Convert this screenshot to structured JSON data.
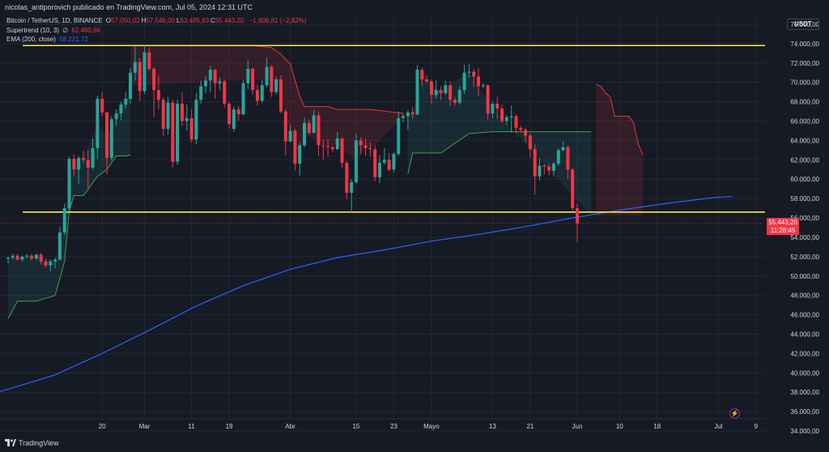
{
  "header": {
    "attribution": "nicolas_antiporovich publicado en TradingView.com, Jul 05, 2024 12:31 UTC"
  },
  "legend": {
    "symbol": "Bitcoin / TetherUS, 1D, BINANCE",
    "ohlc": [
      {
        "label": "O",
        "value": "57.050,02"
      },
      {
        "label": "H",
        "value": "57.546,00"
      },
      {
        "label": "L",
        "value": "53.485,93"
      },
      {
        "label": "C",
        "value": "55.443,20"
      }
    ],
    "change": "−1.606,81 (−2,82%)",
    "supertrend_label": "Supertrend (10, 3)",
    "supertrend_symbol": "∅",
    "supertrend_value": "62.460,66",
    "ema_label": "EMA (200, close)",
    "ema_value": "58.221,72"
  },
  "axis": {
    "unit": "USDT",
    "last_price": "55.443,20",
    "countdown": "11:28:45"
  },
  "footer": {
    "logo_text": "TradingView"
  },
  "colors": {
    "background": "#161a25",
    "bull": "#26a69a",
    "bear": "#f23645",
    "ema": "#2962ff",
    "levels": "#ffeb3b",
    "grid": "#232733",
    "text": "#d1d4dc"
  },
  "chart_data": {
    "type": "candlestick",
    "ylim": [
      33500,
      77000
    ],
    "y_ticks": [
      34000,
      36000,
      38000,
      40000,
      42000,
      44000,
      46000,
      48000,
      50000,
      52000,
      54000,
      56000,
      58000,
      60000,
      62000,
      64000,
      66000,
      68000,
      70000,
      72000,
      74000,
      76000
    ],
    "y_tick_labels": [
      "34.000,00",
      "36.000,00",
      "38.000,00",
      "40.000,00",
      "42.000,00",
      "44.000,00",
      "46.000,00",
      "48.000,00",
      "50.000,00",
      "52.000,00",
      "54.000,00",
      "56.000,00",
      "58.000,00",
      "60.000,00",
      "62.000,00",
      "64.000,00",
      "66.000,00",
      "68.000,00",
      "70.000,00",
      "72.000,00",
      "74.000,00",
      "76.000,00"
    ],
    "x_ticks": [
      {
        "label": "20",
        "day": 20
      },
      {
        "label": "Mar",
        "day": 29
      },
      {
        "label": "11",
        "day": 39
      },
      {
        "label": "19",
        "day": 47
      },
      {
        "label": "Abr",
        "day": 60
      },
      {
        "label": "15",
        "day": 74
      },
      {
        "label": "23",
        "day": 82
      },
      {
        "label": "Mayo",
        "day": 90
      },
      {
        "label": "13",
        "day": 103
      },
      {
        "label": "21",
        "day": 111
      },
      {
        "label": "Jun",
        "day": 121
      },
      {
        "label": "10",
        "day": 130
      },
      {
        "label": "18",
        "day": 138
      },
      {
        "label": "Jul",
        "day": 151
      },
      {
        "label": "9",
        "day": 159
      }
    ],
    "horizontal_levels": [
      73800,
      56600
    ],
    "last_close": 55443.2,
    "candles": [
      [
        51800,
        52000,
        51300,
        51900
      ],
      [
        51900,
        52300,
        51700,
        52100
      ],
      [
        52100,
        52300,
        51600,
        51700
      ],
      [
        51700,
        52100,
        51500,
        52000
      ],
      [
        52000,
        52300,
        51800,
        52100
      ],
      [
        52100,
        52300,
        51600,
        51800
      ],
      [
        51800,
        52300,
        51700,
        52200
      ],
      [
        52200,
        52400,
        51200,
        51500
      ],
      [
        51500,
        51800,
        50900,
        51100
      ],
      [
        51100,
        51700,
        50500,
        51500
      ],
      [
        51500,
        51900,
        50800,
        51700
      ],
      [
        51700,
        55100,
        51600,
        54500
      ],
      [
        54500,
        57500,
        54200,
        57000
      ],
      [
        57000,
        62300,
        56800,
        62100
      ],
      [
        62100,
        62600,
        60300,
        61000
      ],
      [
        61000,
        62400,
        59500,
        62200
      ],
      [
        62200,
        63000,
        61600,
        62000
      ],
      [
        62000,
        63000,
        59000,
        61200
      ],
      [
        61200,
        64200,
        61000,
        63200
      ],
      [
        63200,
        68600,
        62100,
        68300
      ],
      [
        68300,
        69000,
        66500,
        66900
      ],
      [
        66900,
        67000,
        60500,
        62200
      ],
      [
        62200,
        66500,
        61900,
        66200
      ],
      [
        66200,
        67200,
        65500,
        66800
      ],
      [
        66800,
        68000,
        66100,
        67700
      ],
      [
        67700,
        69000,
        67300,
        68300
      ],
      [
        68300,
        71500,
        67800,
        71000
      ],
      [
        71000,
        73700,
        70200,
        72100
      ],
      [
        72100,
        72500,
        68100,
        69100
      ],
      [
        69100,
        73800,
        68800,
        73100
      ],
      [
        73100,
        73600,
        71200,
        71400
      ],
      [
        71400,
        71600,
        66400,
        69200
      ],
      [
        69200,
        70700,
        67200,
        68200
      ],
      [
        68200,
        68400,
        64500,
        65200
      ],
      [
        65200,
        68500,
        64600,
        67900
      ],
      [
        67900,
        68200,
        61200,
        61800
      ],
      [
        61800,
        68200,
        61500,
        67800
      ],
      [
        67800,
        69000,
        65500,
        66000
      ],
      [
        66000,
        67700,
        65000,
        66300
      ],
      [
        66300,
        67200,
        63800,
        64100
      ],
      [
        64100,
        68900,
        63600,
        68200
      ],
      [
        68200,
        70200,
        67800,
        69600
      ],
      [
        69600,
        70700,
        68900,
        70200
      ],
      [
        70200,
        71700,
        69000,
        71300
      ],
      [
        71300,
        71400,
        68300,
        69900
      ],
      [
        69900,
        70500,
        69200,
        70100
      ],
      [
        70100,
        70300,
        67400,
        67800
      ],
      [
        67800,
        68000,
        65200,
        65700
      ],
      [
        65200,
        67500,
        64900,
        67200
      ],
      [
        67200,
        67600,
        66000,
        66700
      ],
      [
        66700,
        70300,
        66600,
        69900
      ],
      [
        69900,
        72300,
        69300,
        71400
      ],
      [
        71400,
        71500,
        68700,
        69200
      ],
      [
        69200,
        69800,
        67600,
        68100
      ],
      [
        68100,
        70300,
        67900,
        69700
      ],
      [
        69700,
        72600,
        69500,
        71600
      ],
      [
        71600,
        71800,
        68500,
        69000
      ],
      [
        69000,
        70600,
        68800,
        70300
      ],
      [
        70300,
        70700,
        66800,
        67000
      ],
      [
        67000,
        67200,
        62500,
        63900
      ],
      [
        63900,
        65600,
        63800,
        65000
      ],
      [
        65000,
        65200,
        60900,
        61600
      ],
      [
        61600,
        63800,
        60400,
        63500
      ],
      [
        63500,
        66400,
        63300,
        65800
      ],
      [
        65800,
        66200,
        64600,
        64800
      ],
      [
        64800,
        67200,
        64700,
        66600
      ],
      [
        66600,
        67000,
        62400,
        63500
      ],
      [
        63500,
        64100,
        62000,
        63400
      ],
      [
        63400,
        64200,
        62300,
        63300
      ],
      [
        63300,
        63500,
        62800,
        63100
      ],
      [
        63100,
        64900,
        63000,
        64200
      ],
      [
        64200,
        64300,
        61100,
        61700
      ],
      [
        61700,
        61900,
        57900,
        58600
      ],
      [
        58600,
        60000,
        56600,
        59700
      ],
      [
        59700,
        64700,
        59500,
        64000
      ],
      [
        64000,
        64300,
        62600,
        63500
      ],
      [
        63500,
        64200,
        62400,
        63200
      ],
      [
        63200,
        63800,
        62300,
        63100
      ],
      [
        63100,
        63500,
        59800,
        60200
      ],
      [
        60200,
        62500,
        59600,
        61700
      ],
      [
        61700,
        63200,
        61500,
        62000
      ],
      [
        62000,
        62700,
        60800,
        61000
      ],
      [
        61000,
        62800,
        60700,
        62600
      ],
      [
        62600,
        67000,
        62400,
        66300
      ],
      [
        66300,
        66800,
        65900,
        66500
      ],
      [
        66500,
        67100,
        65100,
        66900
      ],
      [
        66900,
        67500,
        66200,
        66700
      ],
      [
        66700,
        71800,
        66600,
        71300
      ],
      [
        71300,
        71500,
        69600,
        70300
      ],
      [
        70300,
        70700,
        69900,
        70100
      ],
      [
        70100,
        70300,
        67800,
        68700
      ],
      [
        68700,
        70200,
        68300,
        69200
      ],
      [
        69200,
        69600,
        68200,
        68900
      ],
      [
        68900,
        70200,
        68700,
        69700
      ],
      [
        69700,
        70100,
        67500,
        68200
      ],
      [
        68200,
        68500,
        67600,
        67900
      ],
      [
        67900,
        69600,
        67700,
        69200
      ],
      [
        69200,
        71800,
        68800,
        71000
      ],
      [
        71000,
        71900,
        70500,
        71100
      ],
      [
        71100,
        71400,
        69600,
        70600
      ],
      [
        70600,
        71500,
        68600,
        69600
      ],
      [
        69600,
        69900,
        69400,
        69700
      ],
      [
        69700,
        69800,
        66100,
        66800
      ],
      [
        66800,
        68000,
        66300,
        67800
      ],
      [
        67800,
        68500,
        66200,
        67300
      ],
      [
        67300,
        67700,
        65800,
        66000
      ],
      [
        66000,
        66600,
        65600,
        66400
      ],
      [
        66400,
        67600,
        64800,
        66500
      ],
      [
        66500,
        66700,
        64700,
        65300
      ],
      [
        65300,
        65500,
        64800,
        65100
      ],
      [
        65100,
        65300,
        63800,
        64500
      ],
      [
        64500,
        64700,
        62200,
        63100
      ],
      [
        63100,
        63600,
        58400,
        60300
      ],
      [
        60300,
        62200,
        59900,
        61400
      ],
      [
        61400,
        61600,
        60500,
        61300
      ],
      [
        61300,
        61600,
        60400,
        60900
      ],
      [
        60900,
        61800,
        60300,
        61600
      ],
      [
        61600,
        63200,
        61400,
        63000
      ],
      [
        63000,
        63900,
        62900,
        63300
      ],
      [
        63300,
        63500,
        60000,
        61000
      ],
      [
        61000,
        61100,
        56700,
        57000
      ],
      [
        57000,
        57500,
        53500,
        55443
      ]
    ],
    "supertrend": {
      "lower": [
        [
          0,
          45600
        ],
        [
          2,
          47400
        ],
        [
          6,
          47400
        ],
        [
          10,
          48000
        ],
        [
          12,
          51500
        ],
        [
          13,
          56700
        ],
        [
          14,
          58300
        ],
        [
          16,
          58300
        ],
        [
          19,
          60300
        ],
        [
          21,
          61000
        ],
        [
          23,
          62400
        ],
        [
          25,
          62400
        ],
        [
          26,
          62500
        ]
      ],
      "upper": [
        [
          26,
          73800
        ],
        [
          52,
          73800
        ],
        [
          56,
          73600
        ],
        [
          58,
          72900
        ],
        [
          60,
          71900
        ],
        [
          62,
          68600
        ],
        [
          63,
          67500
        ],
        [
          68,
          67500
        ],
        [
          70,
          67200
        ],
        [
          74,
          67200
        ],
        [
          76,
          67200
        ],
        [
          77,
          67200
        ],
        [
          84,
          66800
        ]
      ],
      "lower2": [
        [
          85,
          60500
        ],
        [
          86,
          62700
        ],
        [
          88,
          62700
        ],
        [
          92,
          62700
        ],
        [
          98,
          64700
        ],
        [
          103,
          64900
        ],
        [
          124,
          64900
        ]
      ],
      "upper2": [
        [
          125,
          69800
        ],
        [
          126,
          69600
        ],
        [
          127,
          68900
        ],
        [
          128,
          68500
        ],
        [
          129,
          66500
        ],
        [
          130,
          66500
        ],
        [
          132,
          66500
        ],
        [
          133,
          65800
        ],
        [
          134,
          63600
        ],
        [
          135,
          62500
        ]
      ]
    },
    "ema": [
      [
        -8,
        37300
      ],
      [
        0,
        38300
      ],
      [
        10,
        39800
      ],
      [
        20,
        42000
      ],
      [
        30,
        44400
      ],
      [
        40,
        46900
      ],
      [
        50,
        49000
      ],
      [
        60,
        50700
      ],
      [
        70,
        51900
      ],
      [
        80,
        52700
      ],
      [
        90,
        53600
      ],
      [
        100,
        54300
      ],
      [
        110,
        55100
      ],
      [
        120,
        56000
      ],
      [
        130,
        56800
      ],
      [
        140,
        57500
      ],
      [
        150,
        58100
      ],
      [
        154,
        58222
      ]
    ]
  }
}
